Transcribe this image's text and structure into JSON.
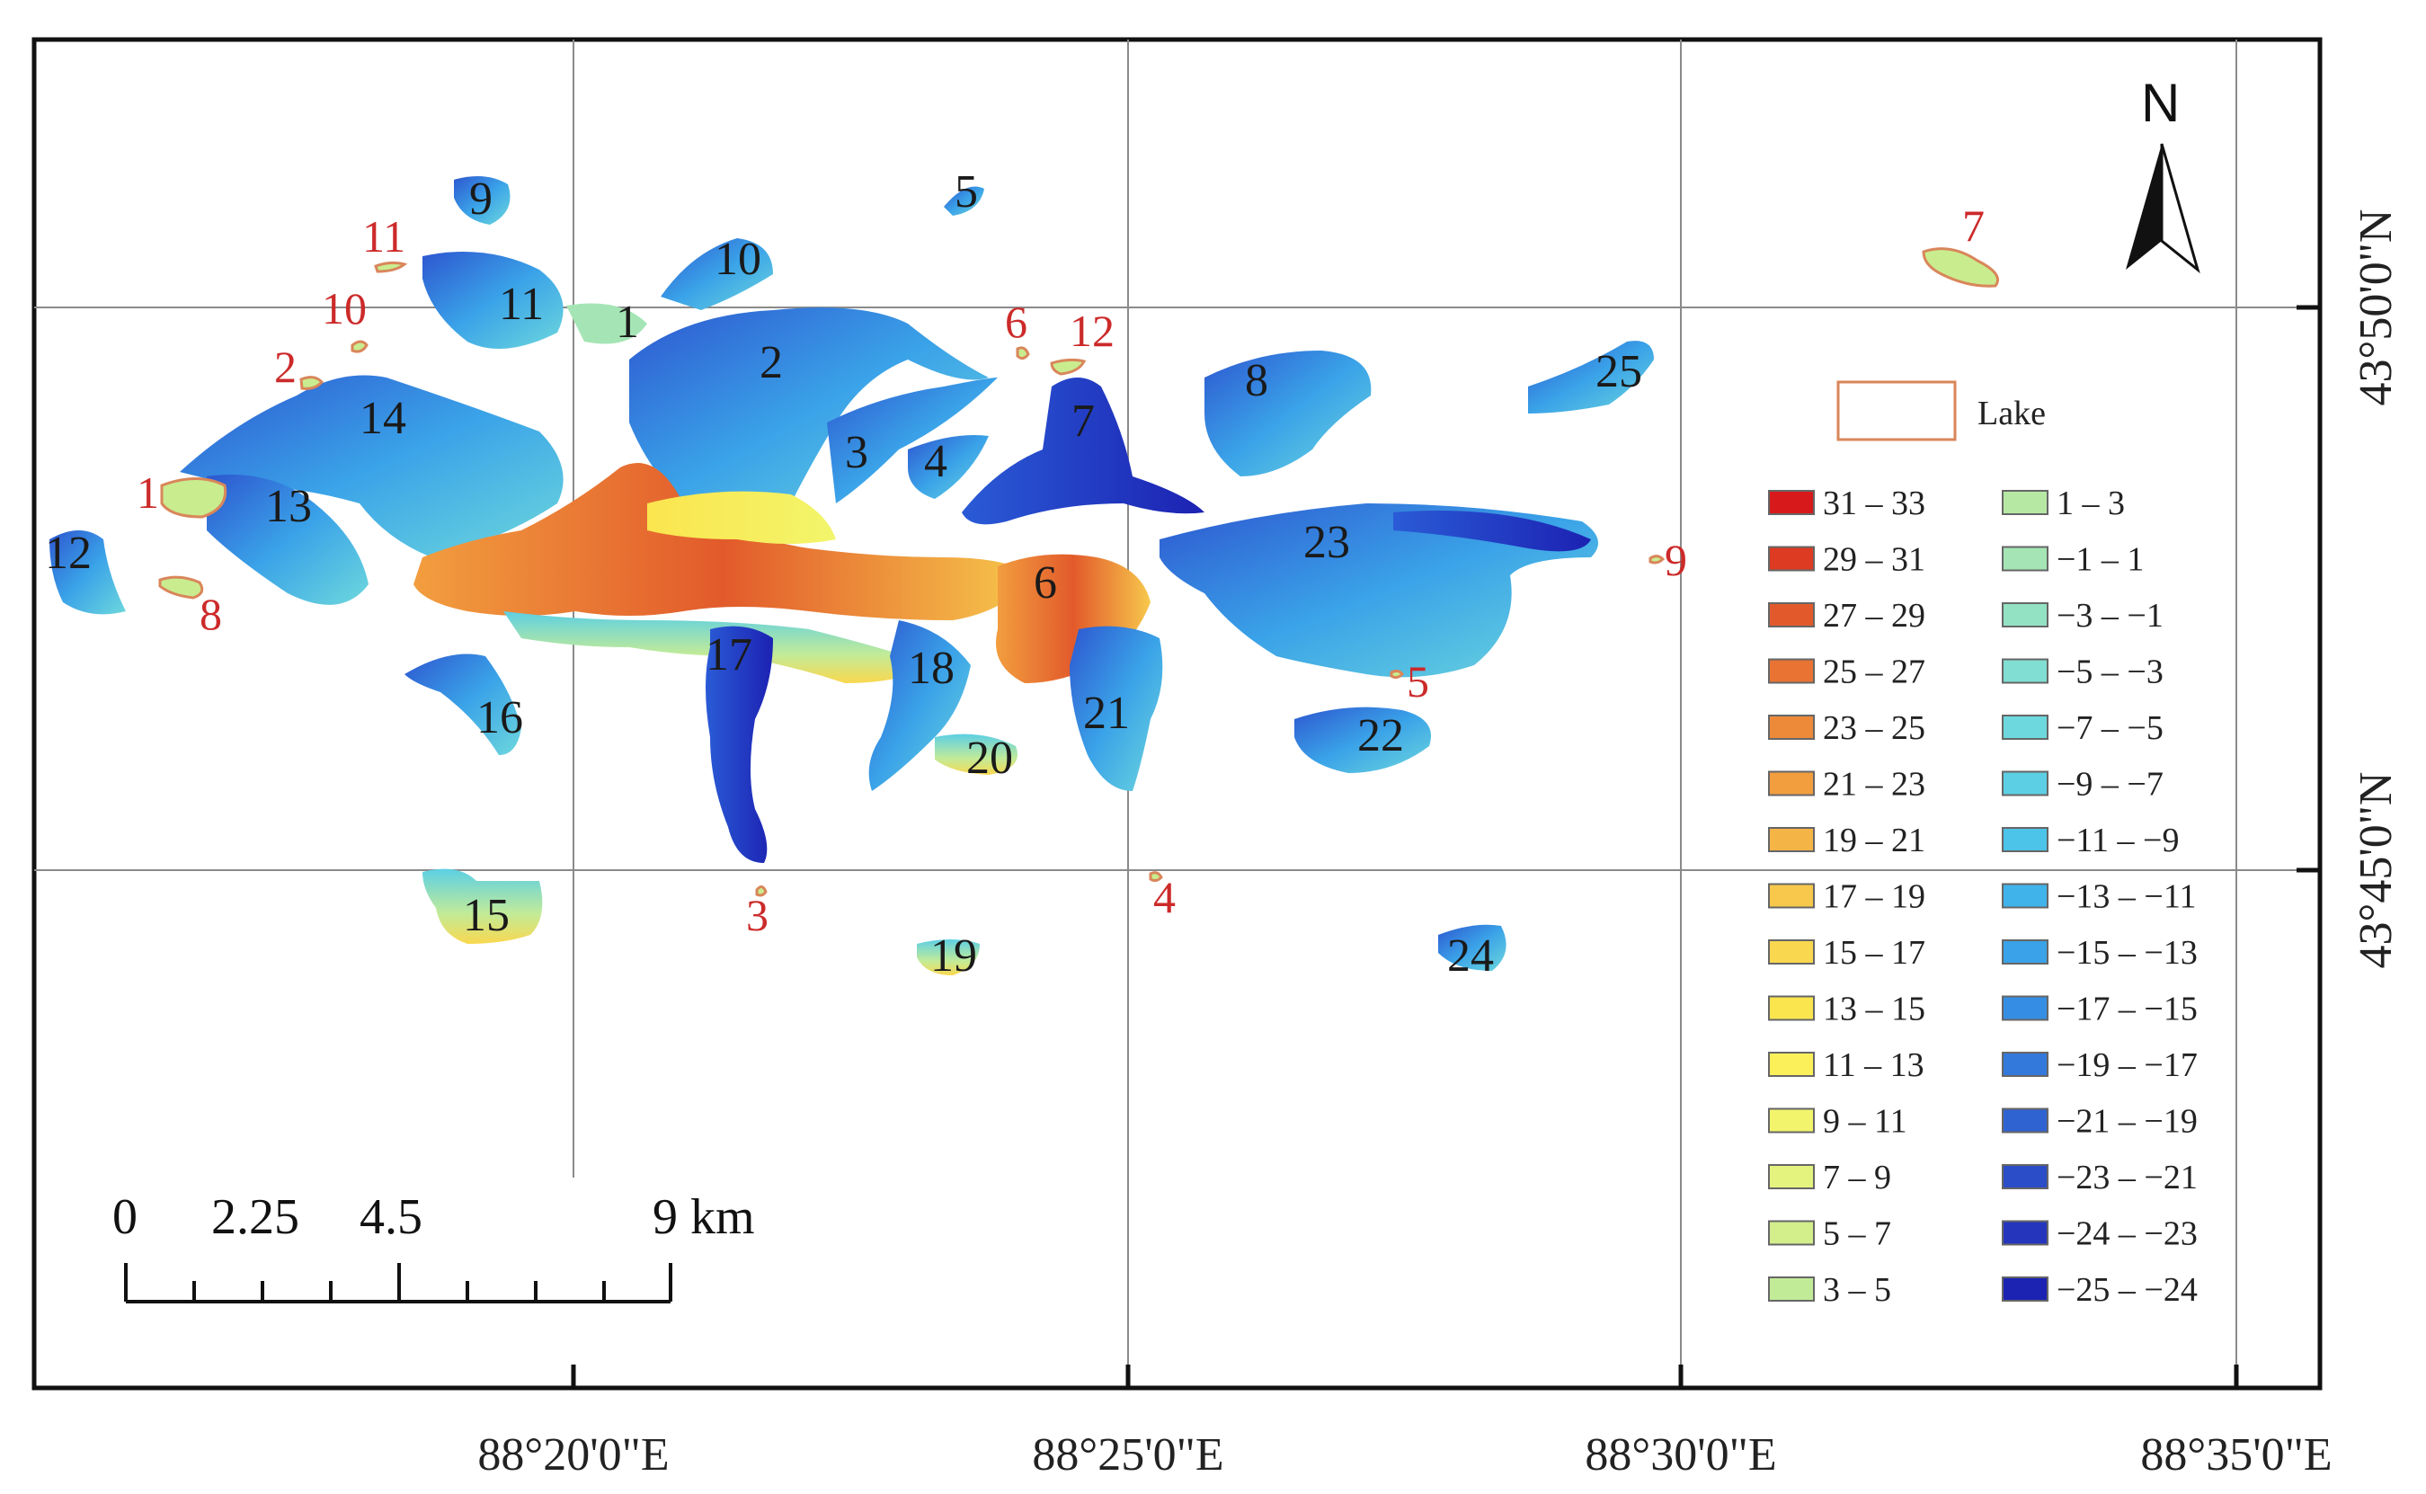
{
  "longitude_labels": [
    "88°20'0\"E",
    "88°25'0\"E",
    "88°30'0\"E",
    "88°35'0\"E"
  ],
  "latitude_labels": [
    "43°50'0\"N",
    "43°45'0\"N"
  ],
  "north_arrow": {
    "label": "N",
    "icon": "north-arrow-icon"
  },
  "scale_bar": {
    "ticks": [
      "0",
      "2.25",
      "4.5",
      "9 km"
    ]
  },
  "legend": {
    "lake_label": "Lake",
    "lake_color": "#d9865a",
    "classes_left": [
      {
        "label": "31 – 33",
        "color": "#d7191c"
      },
      {
        "label": "29 – 31",
        "color": "#de3b23"
      },
      {
        "label": "27 – 29",
        "color": "#e25a2b"
      },
      {
        "label": "25 – 27",
        "color": "#e87333"
      },
      {
        "label": "23 – 25",
        "color": "#ed8a3a"
      },
      {
        "label": "21 – 23",
        "color": "#f29e3f"
      },
      {
        "label": "19 – 21",
        "color": "#f5b446"
      },
      {
        "label": "17 – 19",
        "color": "#f7c84c"
      },
      {
        "label": "15 – 17",
        "color": "#f9d84f"
      },
      {
        "label": "13 – 15",
        "color": "#fbe54f"
      },
      {
        "label": "11 – 13",
        "color": "#fbf05a"
      },
      {
        "label": " 9 – 11",
        "color": "#f2f56b"
      },
      {
        "label": " 7 – 9",
        "color": "#e3f37d"
      },
      {
        "label": " 5 – 7",
        "color": "#d2ef8c"
      },
      {
        "label": " 3 – 5",
        "color": "#c2eb98"
      }
    ],
    "classes_right": [
      {
        "label": " 1 – 3",
        "color": "#b6e8a4"
      },
      {
        "label": "−1 – 1",
        "color": "#a5e5b5"
      },
      {
        "label": "−3 – −1",
        "color": "#93e2c4"
      },
      {
        "label": "−5 – −3",
        "color": "#80ded3"
      },
      {
        "label": "−7 – −5",
        "color": "#6dd8dd"
      },
      {
        "label": "−9 – −7",
        "color": "#5ccfe4"
      },
      {
        "label": "−11 – −9",
        "color": "#4cc3e8"
      },
      {
        "label": "−13 – −11",
        "color": "#40b4ea"
      },
      {
        "label": "−15 – −13",
        "color": "#3aa2e8"
      },
      {
        "label": "−17 – −15",
        "color": "#368ee4"
      },
      {
        "label": "−19 – −17",
        "color": "#3379dc"
      },
      {
        "label": "−21 – −19",
        "color": "#2f63d2"
      },
      {
        "label": "−23 – −21",
        "color": "#2b4dc7"
      },
      {
        "label": "−24 – −23",
        "color": "#2536bd"
      },
      {
        "label": "−25 – −24",
        "color": "#1c22b2"
      }
    ]
  },
  "glacier_labels": [
    "1",
    "2",
    "3",
    "4",
    "5",
    "6",
    "7",
    "8",
    "9",
    "10",
    "11",
    "12",
    "13",
    "14",
    "15",
    "16",
    "17",
    "18",
    "19",
    "20",
    "21",
    "22",
    "23",
    "24",
    "25"
  ],
  "lake_labels": [
    "1",
    "2",
    "3",
    "4",
    "5",
    "6",
    "7",
    "8",
    "9",
    "10",
    "11",
    "12"
  ]
}
